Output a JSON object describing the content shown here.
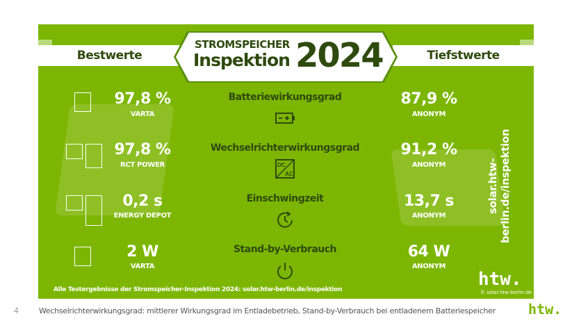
{
  "header": {
    "left_ribbon": "Bestwerte",
    "right_ribbon": "Tiefstwerte",
    "title_line1": "STROMSPEICHER",
    "title_line2": "Inspektion",
    "year": "2024"
  },
  "rows": [
    {
      "metric": "Batteriewirkungsgrad",
      "icon": "battery-icon",
      "best_value": "97,8 %",
      "best_label": "VARTA",
      "worst_value": "87,9 %",
      "worst_label": "ANONYM"
    },
    {
      "metric": "Wechselrichterwirkungsgrad",
      "icon": "dc-ac-inverter-icon",
      "icon_text_top": "DC",
      "icon_text_bottom": "AC",
      "best_value": "97,8 %",
      "best_label": "RCT POWER",
      "worst_value": "91,2 %",
      "worst_label": "ANONYM"
    },
    {
      "metric": "Einschwingzeit",
      "icon": "clock-refresh-icon",
      "best_value": "0,2 s",
      "best_label": "ENERGY DEPOT",
      "worst_value": "13,7 s",
      "worst_label": "ANONYM"
    },
    {
      "metric": "Stand-by-Verbrauch",
      "icon": "power-icon",
      "best_value": "2 W",
      "best_label": "VARTA",
      "worst_value": "64 W",
      "worst_label": "ANONYM"
    }
  ],
  "side_url": "solar.htw-berlin.de/inspektion",
  "footnote": "Alle Testergebnisse der Stromspeicher-Inspektion 2024: solar.htw-berlin.de/inspektion",
  "logo": "htw.",
  "copyright": "© solar.htw-berlin.de",
  "slide": {
    "page_number": "4",
    "caption": "Wechselrichterwirkungsgrad: mittlerer Wirkungsgrad im Entladebetrieb, Stand-by-Verbrauch bei entladenem Batteriespeicher",
    "logo": "htw."
  },
  "colors": {
    "panel": "#7cb602",
    "dark_text": "#2f4a0e"
  }
}
